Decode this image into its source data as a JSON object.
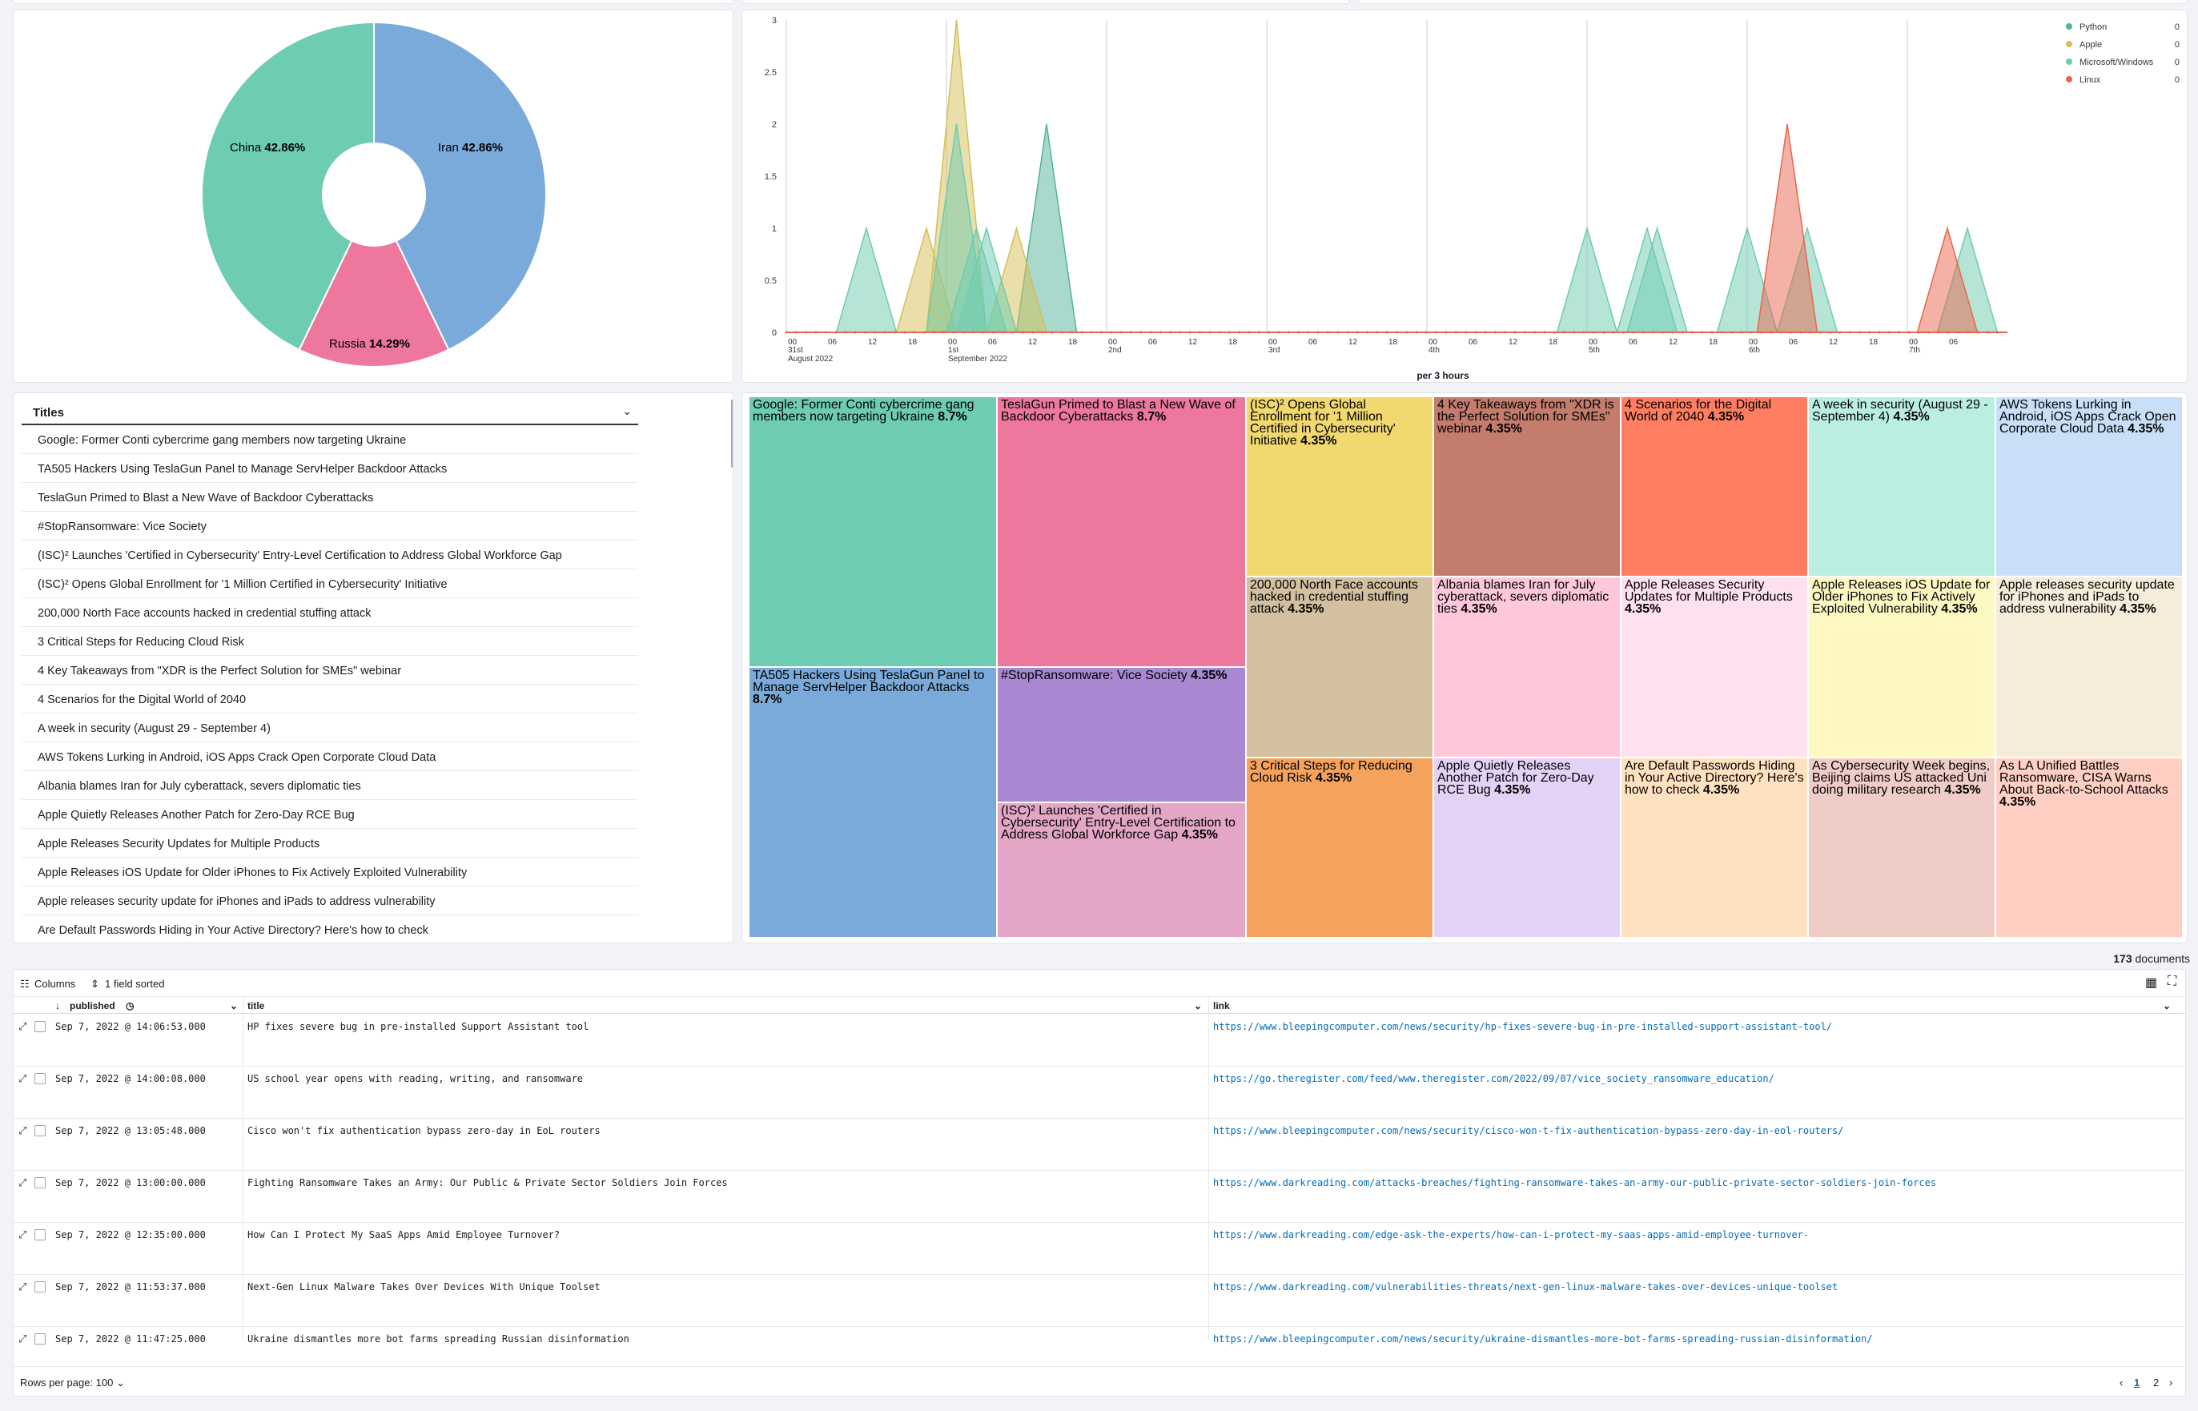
{
  "pie": {
    "slices": [
      {
        "label": "Iran",
        "pct": "42.86%",
        "value": 42.86,
        "color": "#79aad9"
      },
      {
        "label": "Russia",
        "pct": "14.29%",
        "value": 14.29,
        "color": "#ee789d"
      },
      {
        "label": "China",
        "pct": "42.86%",
        "value": 42.86,
        "color": "#6dccb1"
      }
    ]
  },
  "chart_data": {
    "type": "area",
    "xlabel": "per 3 hours",
    "ylim": [
      0,
      3
    ],
    "y_ticks": [
      "0",
      "0.5",
      "1",
      "1.5",
      "2",
      "2.5",
      "3"
    ],
    "x_tick_labels": [
      "00",
      "06",
      "12",
      "18",
      "00",
      "06",
      "12",
      "18",
      "00",
      "06",
      "12",
      "18",
      "00",
      "06",
      "12",
      "18",
      "00",
      "06",
      "12",
      "18",
      "00",
      "06",
      "12",
      "18",
      "00",
      "06",
      "12",
      "18",
      "00",
      "06"
    ],
    "day_labels": [
      {
        "at": 0,
        "text": "31st"
      },
      {
        "at": 4,
        "text": "1st"
      },
      {
        "at": 8,
        "text": "2nd"
      },
      {
        "at": 12,
        "text": "3rd"
      },
      {
        "at": 16,
        "text": "4th"
      },
      {
        "at": 20,
        "text": "5th"
      },
      {
        "at": 24,
        "text": "6th"
      },
      {
        "at": 28,
        "text": "7th"
      }
    ],
    "month_labels": [
      {
        "at": 0,
        "text": "August 2022"
      },
      {
        "at": 4,
        "text": "September 2022"
      }
    ],
    "legend_position": "top-right",
    "series": [
      {
        "name": "Python",
        "color": "#54b399",
        "value_label": "0",
        "peaks": [
          [
            6.5,
            2
          ]
        ]
      },
      {
        "name": "Apple",
        "color": "#d6bf57",
        "value_label": "0",
        "peaks": [
          [
            4.25,
            3
          ],
          [
            3.5,
            1
          ],
          [
            5.75,
            1
          ]
        ]
      },
      {
        "name": "Microsoft/Windows",
        "color": "#6dccb1",
        "value_label": "0",
        "peaks": [
          [
            2,
            1
          ],
          [
            4.25,
            2
          ],
          [
            4.75,
            1
          ],
          [
            5.0,
            1
          ],
          [
            20,
            1
          ],
          [
            21.5,
            1
          ],
          [
            21.75,
            1
          ],
          [
            24,
            1
          ],
          [
            25.5,
            1
          ],
          [
            29.5,
            1
          ]
        ]
      },
      {
        "name": "Linux",
        "color": "#e7664c",
        "value_label": "0",
        "peaks": [
          [
            25,
            2
          ],
          [
            29,
            1
          ]
        ]
      }
    ]
  },
  "titles": {
    "header": "Titles",
    "items": [
      "Google: Former Conti cybercrime gang members now targeting Ukraine",
      "TA505 Hackers Using TeslaGun Panel to Manage ServHelper Backdoor Attacks",
      "TeslaGun Primed to Blast a New Wave of Backdoor Cyberattacks",
      "#StopRansomware: Vice Society",
      "(ISC)² Launches 'Certified in Cybersecurity' Entry-Level Certification to Address Global Workforce Gap",
      "(ISC)² Opens Global Enrollment for '1 Million Certified in Cybersecurity' Initiative",
      "200,000 North Face accounts hacked in credential stuffing attack",
      "3 Critical Steps for Reducing Cloud Risk",
      "4 Key Takeaways from \"XDR is the Perfect Solution for SMEs\" webinar",
      "4 Scenarios for the Digital World of 2040",
      "A week in security (August 29 - September 4)",
      "AWS Tokens Lurking in Android, iOS Apps Crack Open Corporate Cloud Data",
      "Albania blames Iran for July cyberattack, severs diplomatic ties",
      "Apple Quietly Releases Another Patch for Zero-Day RCE Bug",
      "Apple Releases Security Updates for Multiple Products",
      "Apple Releases iOS Update for Older iPhones to Fix Actively Exploited Vulnerability",
      "Apple releases security update for iPhones and iPads to address vulnerability",
      "Are Default Passwords Hiding in Your Active Directory? Here's how to check"
    ]
  },
  "treemap": [
    {
      "text": "Google: Former Conti cybercrime gang members now targeting Ukraine",
      "pct": "8.7%",
      "value": 8.7,
      "color": "#6dccb1"
    },
    {
      "text": "TA505 Hackers Using TeslaGun Panel to Manage ServHelper Backdoor Attacks",
      "pct": "8.7%",
      "value": 8.7,
      "color": "#79aad9"
    },
    {
      "text": "TeslaGun Primed to Blast a New Wave of Backdoor Cyberattacks",
      "pct": "8.7%",
      "value": 8.7,
      "color": "#ee789d"
    },
    {
      "text": "#StopRansomware: Vice Society",
      "pct": "4.35%",
      "value": 4.35,
      "color": "#a987d1"
    },
    {
      "text": "(ISC)² Launches 'Certified in Cybersecurity' Entry-Level Certification to Address Global Workforce Gap",
      "pct": "4.35%",
      "value": 4.35,
      "color": "#e4a6c7"
    },
    {
      "text": "(ISC)² Opens Global Enrollment for '1 Million Certified in Cybersecurity' Initiative",
      "pct": "4.35%",
      "value": 4.35,
      "color": "#f1d86f"
    },
    {
      "text": "200,000 North Face accounts hacked in credential stuffing attack",
      "pct": "4.35%",
      "value": 4.35,
      "color": "#d2c0a0"
    },
    {
      "text": "3 Critical Steps for Reducing Cloud Risk",
      "pct": "4.35%",
      "value": 4.35,
      "color": "#f5a35c"
    },
    {
      "text": "4 Key Takeaways from \"XDR is the Perfect Solution for SMEs\" webinar",
      "pct": "4.35%",
      "value": 4.35,
      "color": "#c47c6c"
    },
    {
      "text": "Albania blames Iran for July cyberattack, severs diplomatic ties",
      "pct": "4.35%",
      "value": 4.35,
      "color": "#ffc7db"
    },
    {
      "text": "Apple Quietly Releases Another Patch for Zero-Day RCE Bug",
      "pct": "4.35%",
      "value": 4.35,
      "color": "#e3d2f5"
    },
    {
      "text": "4 Scenarios for the Digital World of 2040",
      "pct": "4.35%",
      "value": 4.35,
      "color": "#ff7e62"
    },
    {
      "text": "Apple Releases Security Updates for Multiple Products",
      "pct": "4.35%",
      "value": 4.35,
      "color": "#ffe0ef"
    },
    {
      "text": "Are Default Passwords Hiding in Your Active Directory? Here's how to check",
      "pct": "4.35%",
      "value": 4.35,
      "color": "#ffe0bf"
    },
    {
      "text": "A week in security (August 29 - September 4)",
      "pct": "4.35%",
      "value": 4.35,
      "color": "#b9eee1"
    },
    {
      "text": "Apple Releases iOS Update for Older iPhones to Fix Actively Exploited Vulnerability",
      "pct": "4.35%",
      "value": 4.35,
      "color": "#fff7c2"
    },
    {
      "text": "As Cybersecurity Week begins, Beijing claims US attacked Uni doing military research",
      "pct": "4.35%",
      "value": 4.35,
      "color": "#efcdc6"
    },
    {
      "text": "AWS Tokens Lurking in Android, iOS Apps Crack Open Corporate Cloud Data",
      "pct": "4.35%",
      "value": 4.35,
      "color": "#c8dff7"
    },
    {
      "text": "Apple releases security update for iPhones and iPads to address vulnerability",
      "pct": "4.35%",
      "value": 4.35,
      "color": "#f6ecda"
    },
    {
      "text": "As LA Unified Battles Ransomware, CISA Warns About Back-to-School Attacks",
      "pct": "4.35%",
      "value": 4.35,
      "color": "#ffcfc4"
    }
  ],
  "grid": {
    "doc_count": "173",
    "doc_label": "documents",
    "columns_label": "Columns",
    "sort_label": "1 field sorted",
    "headers": {
      "published": "published",
      "title": "title",
      "link": "link"
    },
    "rows": [
      {
        "published": "Sep 7, 2022 @ 14:06:53.000",
        "title": "HP fixes severe bug in pre-installed Support Assistant tool",
        "link": "https://www.bleepingcomputer.com/news/security/hp-fixes-severe-bug-in-pre-installed-support-assistant-tool/"
      },
      {
        "published": "Sep 7, 2022 @ 14:00:08.000",
        "title": "US school year opens with reading, writing, and ransomware",
        "link": "https://go.theregister.com/feed/www.theregister.com/2022/09/07/vice_society_ransomware_education/"
      },
      {
        "published": "Sep 7, 2022 @ 13:05:48.000",
        "title": "Cisco won't fix authentication bypass zero-day in EoL routers",
        "link": "https://www.bleepingcomputer.com/news/security/cisco-won-t-fix-authentication-bypass-zero-day-in-eol-routers/"
      },
      {
        "published": "Sep 7, 2022 @ 13:00:00.000",
        "title": "Fighting Ransomware Takes an Army: Our Public & Private Sector Soldiers Join Forces",
        "link": "https://www.darkreading.com/attacks-breaches/fighting-ransomware-takes-an-army-our-public-private-sector-soldiers-join-forces"
      },
      {
        "published": "Sep 7, 2022 @ 12:35:00.000",
        "title": "How Can I Protect My SaaS Apps Amid Employee Turnover?",
        "link": "https://www.darkreading.com/edge-ask-the-experts/how-can-i-protect-my-saas-apps-amid-employee-turnover-"
      },
      {
        "published": "Sep 7, 2022 @ 11:53:37.000",
        "title": "Next-Gen Linux Malware Takes Over Devices With Unique Toolset",
        "link": "https://www.darkreading.com/vulnerabilities-threats/next-gen-linux-malware-takes-over-devices-unique-toolset"
      },
      {
        "published": "Sep 7, 2022 @ 11:47:25.000",
        "title": "Ukraine dismantles more bot farms spreading Russian disinformation",
        "link": "https://www.bleepingcomputer.com/news/security/ukraine-dismantles-more-bot-farms-spreading-russian-disinformation/"
      }
    ],
    "rows_per_page": "Rows per page: 100",
    "pages": [
      "1",
      "2"
    ]
  }
}
